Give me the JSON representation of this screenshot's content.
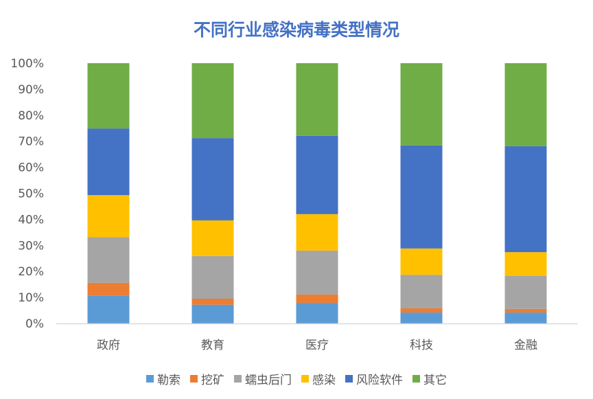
{
  "chart_data": {
    "type": "bar",
    "stacked": "percent",
    "title": "不同行业感染病毒类型情况",
    "xlabel": "",
    "ylabel": "",
    "ylim": [
      0,
      100
    ],
    "yticks": [
      "0%",
      "10%",
      "20%",
      "30%",
      "40%",
      "50%",
      "60%",
      "70%",
      "80%",
      "90%",
      "100%"
    ],
    "categories": [
      "政府",
      "教育",
      "医疗",
      "科技",
      "金融"
    ],
    "series": [
      {
        "name": "勒索",
        "color": "#5B9BD5",
        "values": [
          10.6,
          7.2,
          7.9,
          4.2,
          4.2
        ]
      },
      {
        "name": "挖矿",
        "color": "#ED7D31",
        "values": [
          5.0,
          2.3,
          3.2,
          1.6,
          1.4
        ]
      },
      {
        "name": "蠕虫后门",
        "color": "#A5A5A5",
        "values": [
          17.6,
          16.4,
          16.9,
          12.9,
          12.7
        ]
      },
      {
        "name": "感染",
        "color": "#FFC000",
        "values": [
          16.1,
          13.7,
          14.0,
          10.1,
          9.1
        ]
      },
      {
        "name": "风险软件",
        "color": "#4472C4",
        "values": [
          25.6,
          31.6,
          30.1,
          39.6,
          40.7
        ]
      },
      {
        "name": "其它",
        "color": "#70AD47",
        "values": [
          25.1,
          28.8,
          27.9,
          31.6,
          31.9
        ]
      }
    ],
    "grid": false,
    "legend": "bottom"
  }
}
